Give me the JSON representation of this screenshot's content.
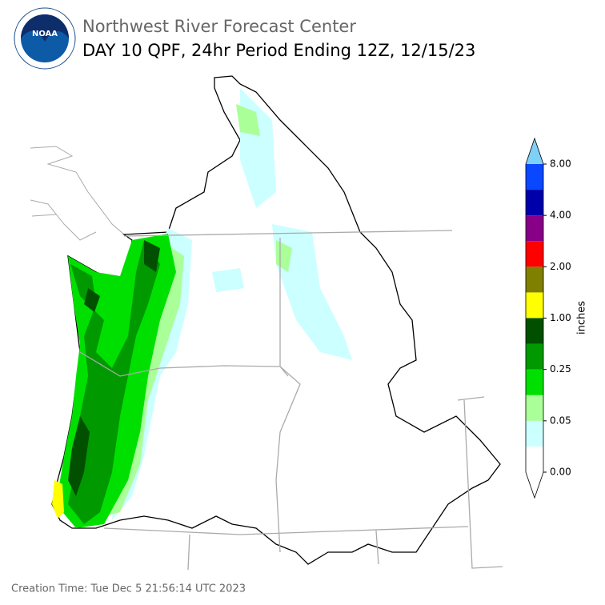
{
  "header": {
    "title": "Northwest River Forecast Center",
    "subtitle": "DAY 10 QPF, 24hr Period Ending 12Z, 12/15/23",
    "logo_text": "NOAA"
  },
  "colorbar": {
    "label": "inches",
    "ticks": [
      {
        "value": 0,
        "label": "0.00"
      },
      {
        "value": 0.05,
        "label": "0.05"
      },
      {
        "value": 0.25,
        "label": "0.25"
      },
      {
        "value": 1,
        "label": "1.00"
      },
      {
        "value": 2,
        "label": "2.00"
      },
      {
        "value": 4,
        "label": "4.00"
      },
      {
        "value": 8,
        "label": "8.00"
      }
    ],
    "colors": [
      "#ffffff",
      "#ccffff",
      "#aaff99",
      "#00e000",
      "#009900",
      "#005000",
      "#ffff00",
      "#808000",
      "#ff0000",
      "#880088",
      "#0000aa",
      "#0a48ff"
    ],
    "extend_colors": [
      "#ffffff",
      "#7fd0f7"
    ]
  },
  "footer": {
    "creation_time": "Creation Time: Tue Dec 5 21:56:14 UTC 2023"
  }
}
